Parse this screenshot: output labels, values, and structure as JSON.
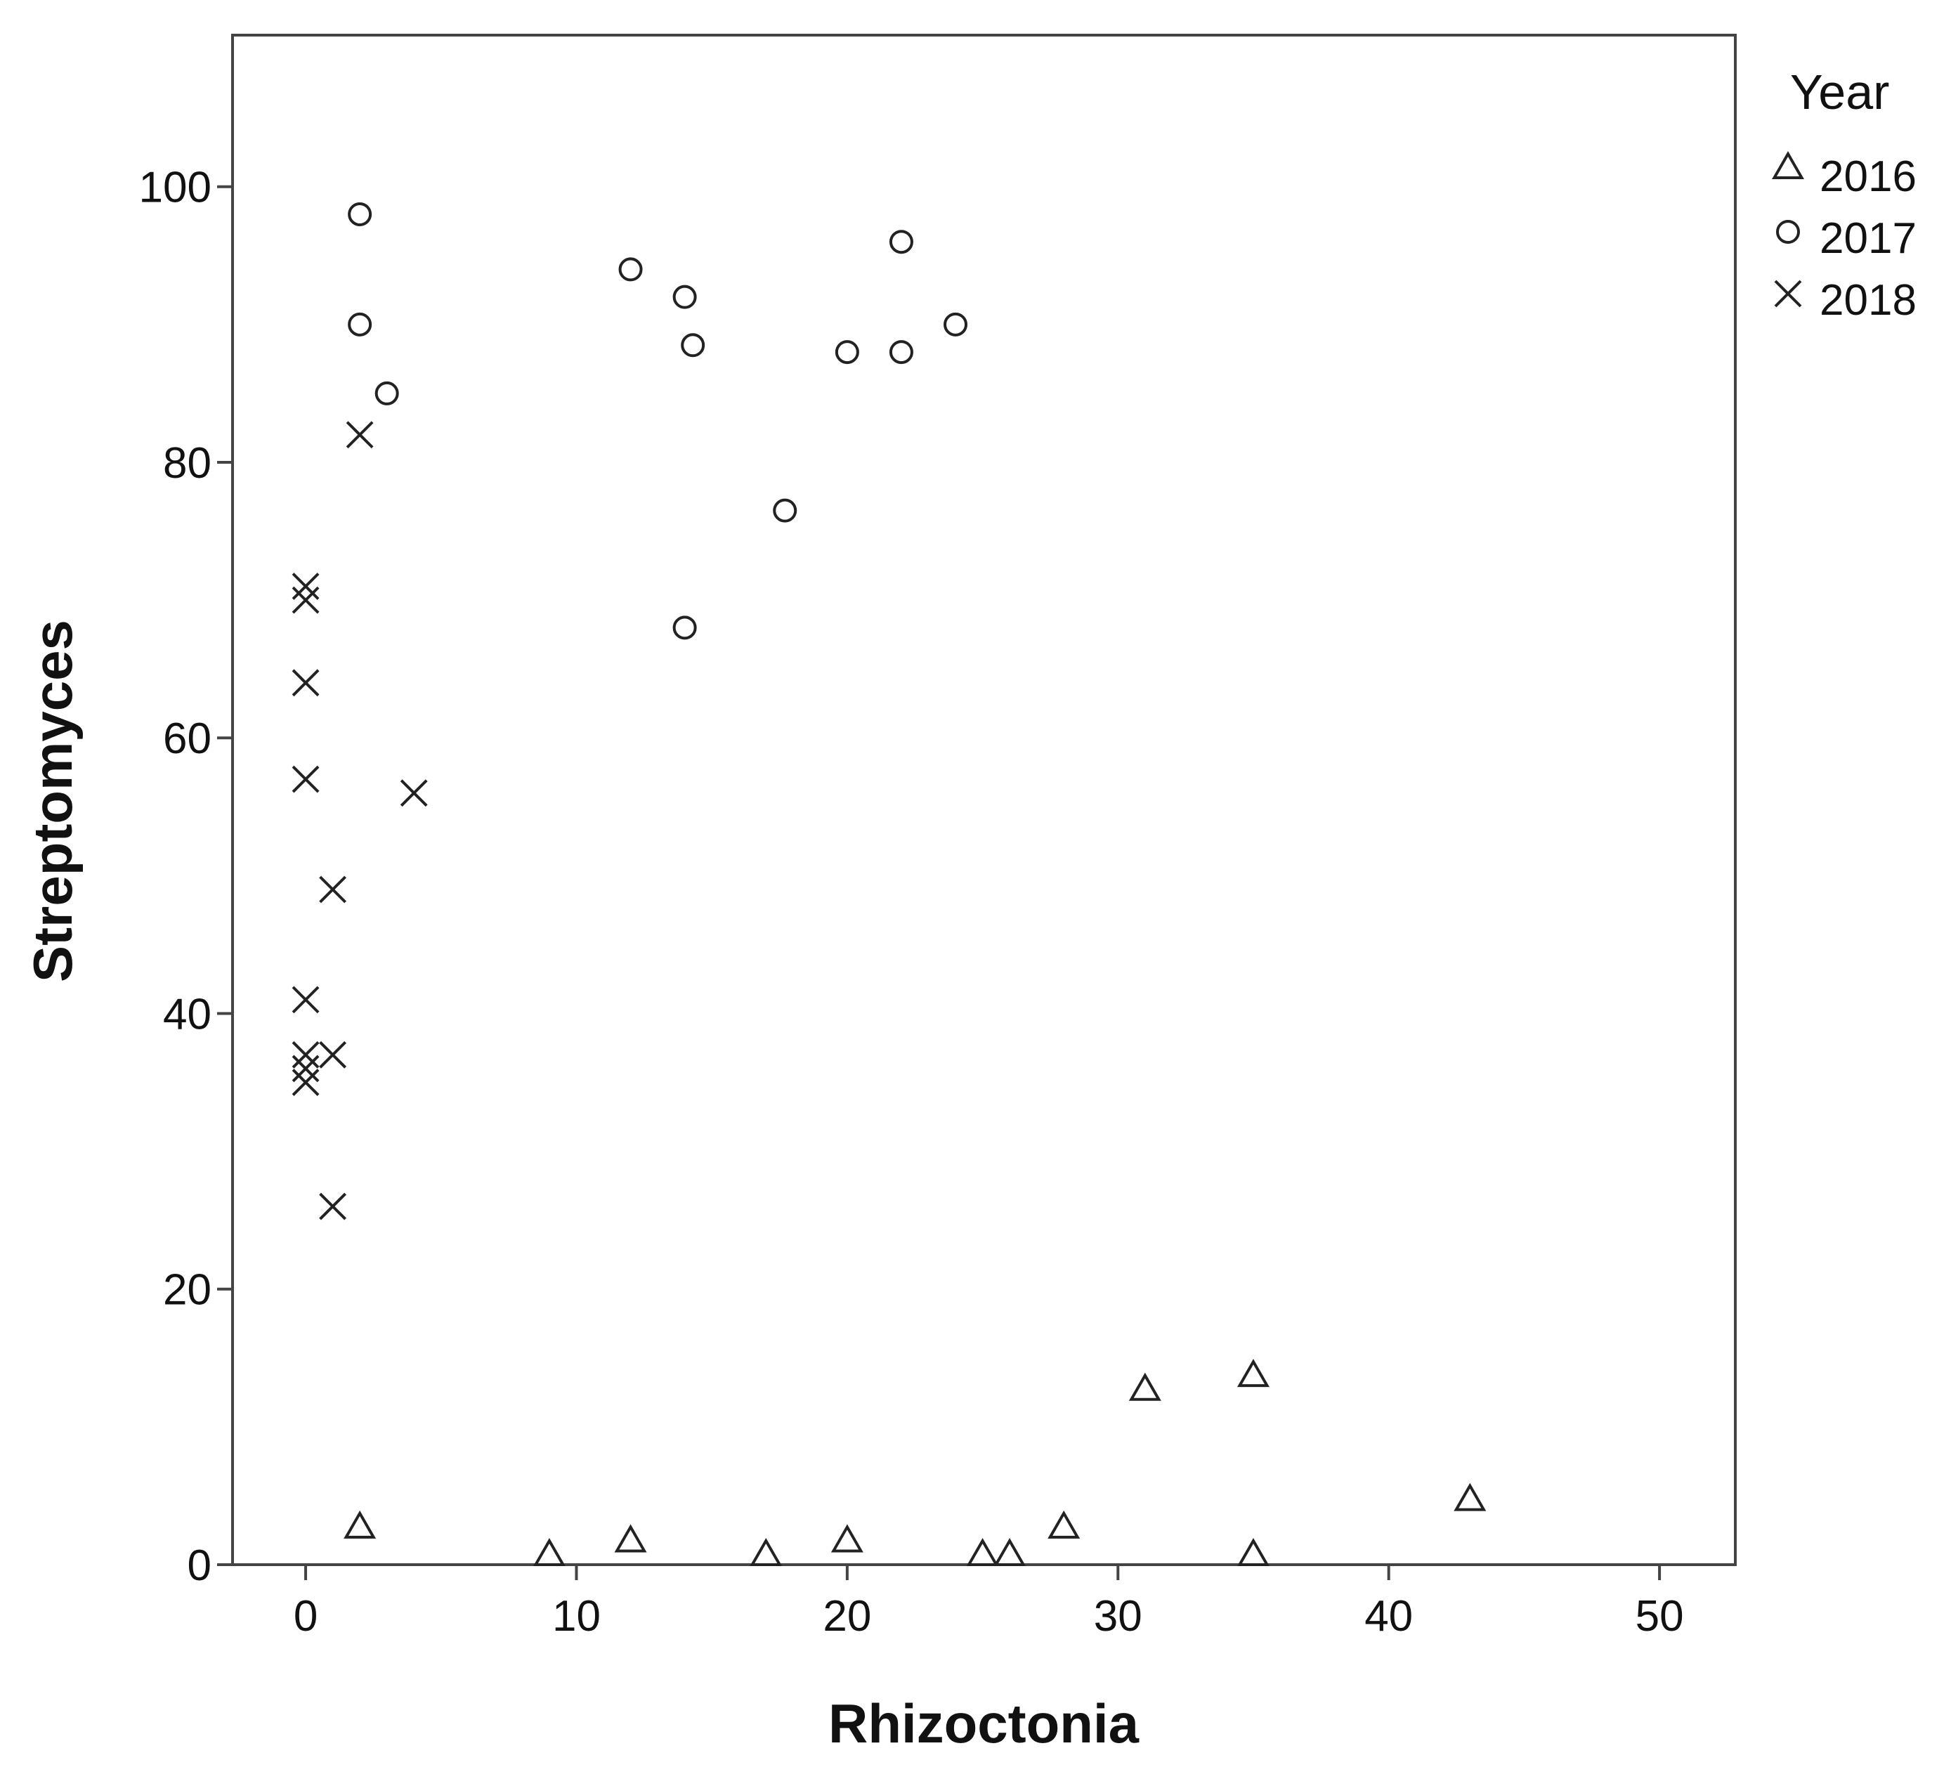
{
  "chart_data": {
    "type": "scatter",
    "title": "",
    "xlabel": "Rhizoctonia",
    "ylabel": "Streptomyces",
    "xlim": [
      -2.7,
      52.8
    ],
    "ylim": [
      0,
      111
    ],
    "xticks": [
      0,
      10,
      20,
      30,
      40,
      50
    ],
    "xtick_labels": [
      "0",
      "10",
      "20",
      "30",
      "40",
      "50"
    ],
    "yticks": [
      0,
      20,
      40,
      60,
      80,
      100
    ],
    "ytick_labels": [
      "0",
      "20",
      "40",
      "60",
      "80",
      "100"
    ],
    "grid": false,
    "legend": {
      "title": "Year",
      "placement": "right",
      "entries": [
        {
          "label": "2016",
          "marker": "triangle"
        },
        {
          "label": "2017",
          "marker": "circle"
        },
        {
          "label": "2018",
          "marker": "x"
        }
      ]
    },
    "series": [
      {
        "name": "2016",
        "marker": "triangle",
        "points": [
          [
            2,
            2
          ],
          [
            9,
            0
          ],
          [
            12,
            1
          ],
          [
            17,
            0
          ],
          [
            20,
            1
          ],
          [
            25,
            0
          ],
          [
            26,
            0
          ],
          [
            28,
            2
          ],
          [
            31,
            12
          ],
          [
            35,
            13
          ],
          [
            35,
            0
          ],
          [
            43,
            4
          ]
        ]
      },
      {
        "name": "2017",
        "marker": "circle",
        "points": [
          [
            2,
            98
          ],
          [
            2,
            90
          ],
          [
            3,
            85
          ],
          [
            12,
            94
          ],
          [
            14,
            92
          ],
          [
            14.3,
            88.5
          ],
          [
            14,
            68
          ],
          [
            17.7,
            76.5
          ],
          [
            20,
            88
          ],
          [
            22,
            96
          ],
          [
            22,
            88
          ],
          [
            24,
            90
          ]
        ]
      },
      {
        "name": "2018",
        "marker": "x",
        "points": [
          [
            2,
            82
          ],
          [
            0,
            71
          ],
          [
            0,
            70
          ],
          [
            0,
            64
          ],
          [
            0,
            57
          ],
          [
            4,
            56
          ],
          [
            1,
            49
          ],
          [
            0,
            41
          ],
          [
            0,
            37
          ],
          [
            1,
            37
          ],
          [
            0,
            36
          ],
          [
            0,
            35
          ],
          [
            1,
            26
          ]
        ]
      }
    ]
  }
}
